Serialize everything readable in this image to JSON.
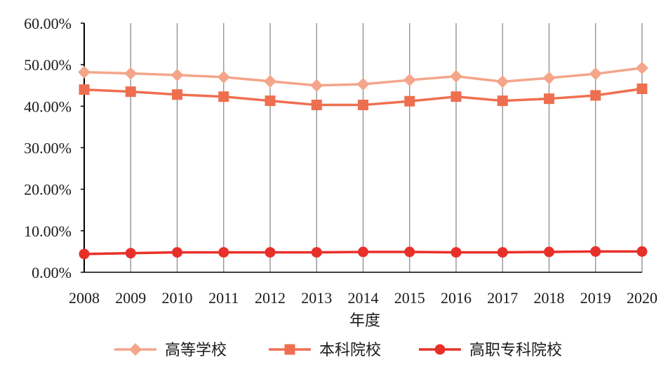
{
  "chart_data": {
    "type": "line",
    "title": "",
    "xlabel": "年度",
    "ylabel": "",
    "x": [
      "2008",
      "2009",
      "2010",
      "2011",
      "2012",
      "2013",
      "2014",
      "2015",
      "2016",
      "2017",
      "2018",
      "2019",
      "2020"
    ],
    "ylim": [
      0,
      60
    ],
    "yticks": [
      "0.00%",
      "10.00%",
      "20.00%",
      "30.00%",
      "40.00%",
      "50.00%",
      "60.00%"
    ],
    "grid": "vertical gridlines at each year",
    "legend_position": "bottom",
    "series": [
      {
        "name": "高等学校",
        "marker": "diamond",
        "color": "#F4A58A",
        "values": [
          48.2,
          47.9,
          47.5,
          47.0,
          46.0,
          45.0,
          45.3,
          46.3,
          47.2,
          45.9,
          46.8,
          47.8,
          49.2
        ]
      },
      {
        "name": "本科院校",
        "marker": "square",
        "color": "#EE6F50",
        "values": [
          44.0,
          43.5,
          42.8,
          42.3,
          41.3,
          40.3,
          40.3,
          41.2,
          42.3,
          41.3,
          41.8,
          42.6,
          44.2
        ]
      },
      {
        "name": "高职专科院校",
        "marker": "circle",
        "color": "#E8302A",
        "values": [
          4.4,
          4.6,
          4.8,
          4.8,
          4.8,
          4.8,
          4.9,
          4.9,
          4.8,
          4.8,
          4.9,
          5.0,
          5.0
        ]
      }
    ]
  }
}
